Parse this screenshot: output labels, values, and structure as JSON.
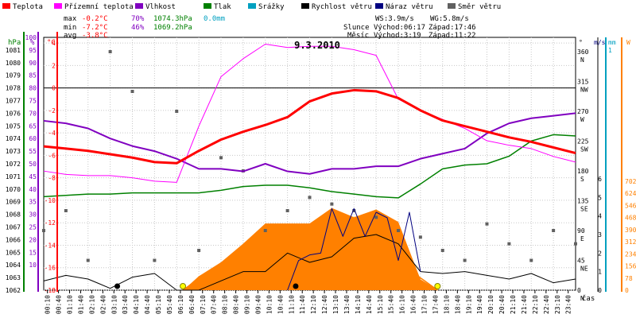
{
  "legend": [
    {
      "label": "Teplota",
      "color": "#ff0000"
    },
    {
      "label": "Přízemní teplota",
      "color": "#ff00ff"
    },
    {
      "label": "Vlhkost",
      "color": "#8000c0"
    },
    {
      "label": "Tlak",
      "color": "#008000"
    },
    {
      "label": "Srážky",
      "color": "#00a0c0"
    },
    {
      "label": "Rychlost větru",
      "color": "#000000"
    },
    {
      "label": "Náraz větru",
      "color": "#000080"
    },
    {
      "label": "Směr větru",
      "color": "#606060"
    }
  ],
  "stats": {
    "max_label": "max",
    "min_label": "min",
    "avg_label": "avg",
    "max_temp": "-0.2°C",
    "min_temp": "-7.2°C",
    "avg_temp": "-3.8°C",
    "max_hum": "70%",
    "min_hum": "46%",
    "max_press": "1074.3hPa",
    "min_press": "1069.2hPa",
    "rain": "0.0mm"
  },
  "wind_info": {
    "ws": "WS:3.9m/s",
    "wg": "WG:5.8m/s"
  },
  "sun": {
    "prefix": "Slunce",
    "rise": "Východ:06:17",
    "set": "Západ:17:46"
  },
  "moon": {
    "prefix": "Měsíc",
    "rise": "Východ:3:19",
    "set": "Západ:11:22"
  },
  "title": "9.3.2010",
  "x_label": "čas",
  "colors": {
    "temp": "#ff0000",
    "ground": "#ff00ff",
    "hum": "#8000c0",
    "press": "#008000",
    "rain": "#00a0c0",
    "wind": "#000000",
    "gust": "#000080",
    "dir": "#606060",
    "solar": "#ff8000",
    "grid": "#c8c8c8"
  },
  "chart_data": {
    "type": "line",
    "title": "9.3.2010",
    "x_unit": "time (hours)",
    "x_range": [
      0,
      24
    ],
    "x_ticks": [
      "00:10",
      "00:40",
      "01:10",
      "01:40",
      "02:10",
      "02:40",
      "03:10",
      "03:40",
      "04:10",
      "04:40",
      "05:10",
      "05:40",
      "06:10",
      "06:40",
      "07:10",
      "07:40",
      "08:10",
      "08:40",
      "09:10",
      "09:40",
      "10:10",
      "10:40",
      "11:10",
      "11:40",
      "12:10",
      "12:40",
      "13:10",
      "13:40",
      "14:10",
      "14:40",
      "15:10",
      "15:40",
      "16:10",
      "16:40",
      "17:10",
      "17:40",
      "18:10",
      "18:40",
      "19:10",
      "19:40",
      "20:10",
      "20:40",
      "21:10",
      "21:40",
      "22:10",
      "22:40",
      "23:10",
      "23:40"
    ],
    "axes": {
      "pressure_hpa": {
        "range": [
          1062,
          1082
        ],
        "ticks": [
          1062,
          1063,
          1064,
          1065,
          1066,
          1067,
          1068,
          1069,
          1070,
          1071,
          1072,
          1073,
          1074,
          1075,
          1076,
          1077,
          1078,
          1079,
          1080,
          1081
        ]
      },
      "humidity_pct": {
        "range": [
          0,
          100
        ],
        "ticks": [
          10,
          15,
          20,
          25,
          30,
          35,
          40,
          45,
          50,
          55,
          60,
          65,
          70,
          75,
          80,
          85,
          90,
          95,
          100
        ]
      },
      "temperature_c": {
        "range": [
          -18,
          4.5
        ],
        "ticks": [
          4,
          2,
          0,
          -2,
          -4,
          -6,
          -8,
          -10,
          -12,
          -14,
          -16,
          -18
        ]
      },
      "wind_dir": {
        "ticks": [
          {
            "deg": "0",
            "dir": "N"
          },
          {
            "deg": "45",
            "dir": "NE"
          },
          {
            "deg": "90",
            "dir": "E"
          },
          {
            "deg": "135",
            "dir": "SE"
          },
          {
            "deg": "180",
            "dir": "S"
          },
          {
            "deg": "225",
            "dir": "SW"
          },
          {
            "deg": "270",
            "dir": "W"
          },
          {
            "deg": "315",
            "dir": "NW"
          },
          {
            "deg": "360",
            "dir": "N"
          }
        ]
      },
      "wind_ms": {
        "unit": "m/s",
        "ticks": [
          "0",
          "1",
          "2",
          "3",
          "4",
          "5",
          "6"
        ]
      },
      "rain_mm": {
        "unit": "mm",
        "ticks": [
          "0",
          "1"
        ]
      },
      "solar_w": {
        "unit": "W",
        "ticks": [
          "0",
          "78",
          "156",
          "234",
          "312",
          "390",
          "468",
          "546",
          "624",
          "702"
        ]
      },
      "units_left": [
        "hPa",
        "%",
        "°C"
      ],
      "units_right": [
        "°",
        "m/s",
        "mm",
        "W"
      ]
    },
    "series": [
      {
        "name": "Teplota",
        "unit": "°C",
        "x": [
          0,
          1,
          2,
          3,
          4,
          5,
          6,
          7,
          8,
          9,
          10,
          11,
          12,
          13,
          14,
          15,
          16,
          17,
          18,
          19,
          20,
          21,
          22,
          23,
          24
        ],
        "values": [
          -5.2,
          -5.4,
          -5.6,
          -5.9,
          -6.2,
          -6.6,
          -6.7,
          -5.6,
          -4.6,
          -3.9,
          -3.3,
          -2.6,
          -1.2,
          -0.5,
          -0.2,
          -0.3,
          -0.9,
          -2.0,
          -2.9,
          -3.4,
          -3.9,
          -4.4,
          -4.8,
          -5.3,
          -5.8
        ]
      },
      {
        "name": "Přízemní teplota",
        "unit": "°C",
        "x": [
          0,
          1,
          2,
          3,
          4,
          5,
          6,
          7,
          8,
          9,
          10,
          11,
          12,
          13,
          14,
          15,
          16,
          17,
          18,
          19,
          20,
          21,
          22,
          23,
          24
        ],
        "values": [
          -7.4,
          -7.7,
          -7.8,
          -7.8,
          -8.0,
          -8.3,
          -8.4,
          -3.4,
          1.0,
          2.6,
          3.9,
          3.6,
          3.7,
          3.7,
          3.4,
          2.9,
          -1.0,
          -2.0,
          -2.8,
          -3.6,
          -4.7,
          -5.1,
          -5.4,
          -6.1,
          -6.6
        ]
      },
      {
        "name": "Vlhkost",
        "unit": "%",
        "x": [
          0,
          1,
          2,
          3,
          4,
          5,
          6,
          7,
          8,
          9,
          10,
          11,
          12,
          13,
          14,
          15,
          16,
          17,
          18,
          19,
          20,
          21,
          22,
          23,
          24
        ],
        "values": [
          67,
          66,
          64,
          60,
          57,
          55,
          52,
          48,
          48,
          47,
          50,
          47,
          46,
          48,
          48,
          49,
          49,
          52,
          54,
          56,
          62,
          66,
          68,
          69,
          70
        ]
      },
      {
        "name": "Tlak",
        "unit": "hPa",
        "x": [
          0,
          1,
          2,
          3,
          4,
          5,
          6,
          7,
          8,
          9,
          10,
          11,
          12,
          13,
          14,
          15,
          16,
          17,
          18,
          19,
          20,
          21,
          22,
          23,
          24
        ],
        "values": [
          1069.4,
          1069.5,
          1069.6,
          1069.6,
          1069.7,
          1069.7,
          1069.7,
          1069.7,
          1069.9,
          1070.2,
          1070.3,
          1070.3,
          1070.1,
          1069.8,
          1069.6,
          1069.4,
          1069.3,
          1070.4,
          1071.6,
          1071.9,
          1072.0,
          1072.6,
          1073.8,
          1074.3,
          1074.2
        ]
      },
      {
        "name": "Srážky",
        "unit": "mm",
        "x": [
          0,
          24
        ],
        "values": [
          0.0,
          0.0
        ]
      },
      {
        "name": "Rychlost větru",
        "unit": "m/s",
        "x": [
          0,
          1,
          2,
          3,
          4,
          5,
          6,
          7,
          8,
          9,
          10,
          11,
          12,
          13,
          14,
          15,
          16,
          17,
          18,
          19,
          20,
          21,
          22,
          23,
          24
        ],
        "values": [
          0.5,
          0.8,
          0.6,
          0.1,
          0.7,
          0.9,
          0.0,
          0.0,
          0.5,
          1.0,
          1.0,
          2.0,
          1.5,
          1.8,
          2.8,
          3.0,
          2.5,
          1.0,
          0.9,
          1.0,
          0.8,
          0.6,
          0.9,
          0.4,
          0.6
        ]
      },
      {
        "name": "Náraz větru",
        "unit": "m/s",
        "x": [
          11.0,
          11.5,
          12.0,
          12.5,
          13.0,
          13.5,
          14.0,
          14.5,
          15.0,
          15.5,
          16.0,
          16.5,
          17.0
        ],
        "values": [
          0.0,
          1.6,
          1.9,
          2.0,
          4.4,
          2.9,
          4.4,
          2.9,
          4.2,
          3.9,
          1.6,
          4.2,
          1.0
        ]
      },
      {
        "name": "Směr větru",
        "unit": "°",
        "x": [
          0,
          1,
          2,
          3,
          4,
          5,
          6,
          7,
          8,
          9,
          10,
          11,
          12,
          13,
          14,
          15,
          16,
          17,
          18,
          19,
          20,
          21,
          22,
          23,
          24
        ],
        "values": [
          90,
          120,
          45,
          360,
          300,
          45,
          270,
          60,
          200,
          180,
          90,
          120,
          140,
          130,
          120,
          110,
          90,
          80,
          60,
          45,
          100,
          70,
          45,
          90,
          70
        ]
      },
      {
        "name": "Solar",
        "unit": "W",
        "x": [
          6.3,
          7,
          8,
          9,
          10,
          11,
          12,
          13,
          14,
          15,
          16,
          17,
          17.8
        ],
        "values": [
          0,
          90,
          180,
          300,
          430,
          430,
          430,
          530,
          470,
          520,
          440,
          70,
          0
        ]
      }
    ],
    "events": [
      {
        "label": "Slunce Východ",
        "value": "06:17"
      },
      {
        "label": "Slunce Západ",
        "value": "17:46"
      },
      {
        "label": "Měsíc Východ",
        "value": "3:19"
      },
      {
        "label": "Měsíc Západ",
        "value": "11:22"
      }
    ]
  }
}
